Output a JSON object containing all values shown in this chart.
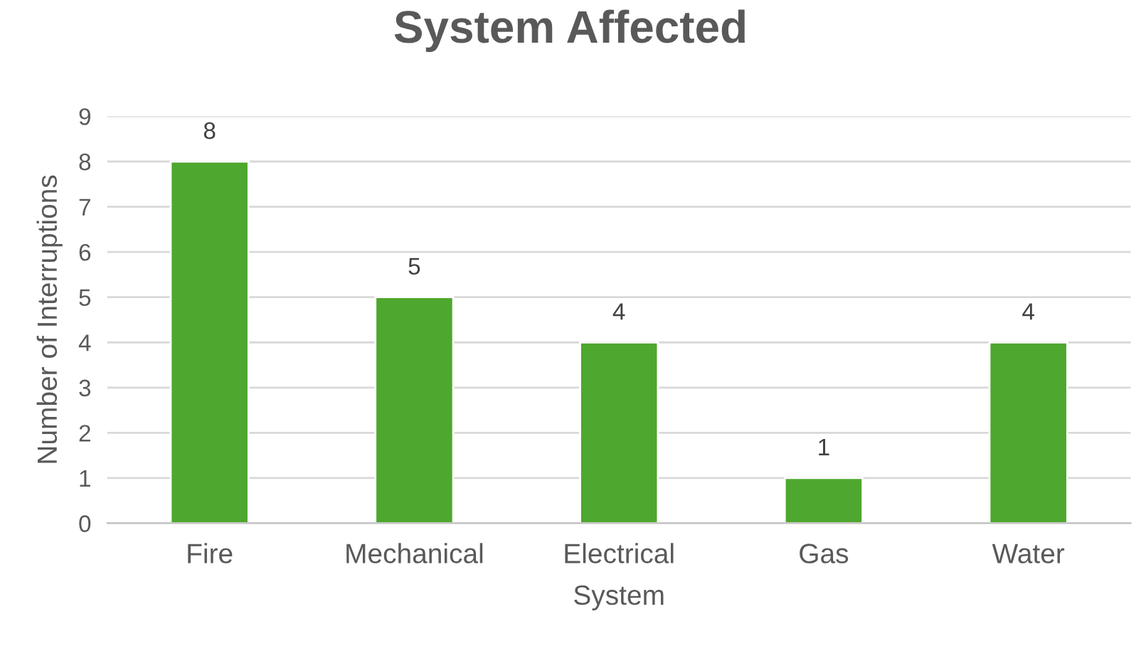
{
  "chart_data": {
    "type": "bar",
    "title": "System Affected",
    "xlabel": "System",
    "ylabel": "Number of Interruptions",
    "categories": [
      "Fire",
      "Mechanical",
      "Electrical",
      "Gas",
      "Water"
    ],
    "values": [
      8,
      5,
      4,
      1,
      4
    ],
    "color": "#4ea72e",
    "ylim": [
      0,
      9
    ],
    "yticks": [
      0,
      1,
      2,
      3,
      4,
      5,
      6,
      7,
      8,
      9
    ],
    "grid": "y",
    "data_labels": true,
    "legend": false
  }
}
